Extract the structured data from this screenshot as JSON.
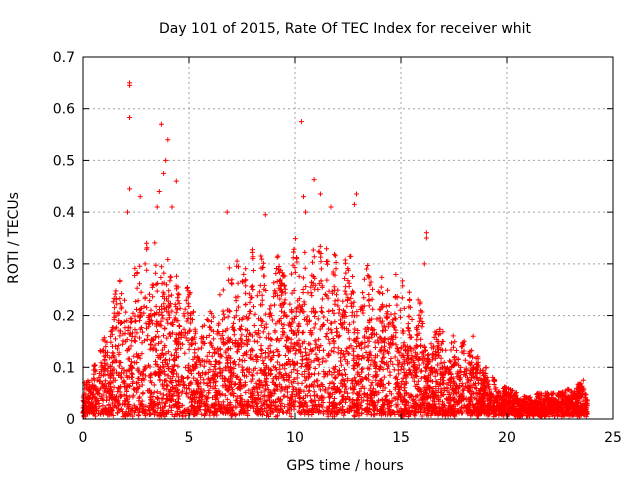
{
  "chart_data": {
    "type": "scatter",
    "title": "Day 101 of 2015, Rate Of TEC Index for receiver whit",
    "xlabel": "GPS time / hours",
    "ylabel": "ROTI / TECUs",
    "xlim": [
      0,
      25
    ],
    "ylim": [
      0,
      0.7
    ],
    "xticks": [
      0,
      5,
      10,
      15,
      20,
      25
    ],
    "yticks": [
      0,
      0.1,
      0.2,
      0.3,
      0.4,
      0.5,
      0.6,
      0.7
    ],
    "xtick_labels": [
      "0",
      "5",
      "10",
      "15",
      "20",
      "25"
    ],
    "ytick_labels": [
      "0",
      "0.1",
      "0.2",
      "0.3",
      "0.4",
      "0.5",
      "0.6",
      "0.7"
    ],
    "grid": true,
    "marker": "+",
    "color": "#ff0000",
    "series": [
      {
        "name": "ROTI",
        "envelope_hours": [
          0,
          0.5,
          1,
          1.5,
          2,
          2.5,
          3,
          3.5,
          4,
          4.5,
          5,
          5.5,
          6,
          6.5,
          7,
          7.5,
          8,
          8.5,
          9,
          9.5,
          10,
          10.5,
          11,
          11.5,
          12,
          12.5,
          13,
          13.5,
          14,
          14.5,
          15,
          15.5,
          16,
          16.5,
          17,
          17.5,
          18,
          18.5,
          19,
          19.5,
          20,
          20.5,
          21,
          21.5,
          22,
          22.5,
          23,
          23.5,
          23.8
        ],
        "envelope_max": [
          0.07,
          0.1,
          0.16,
          0.25,
          0.3,
          0.31,
          0.34,
          0.35,
          0.33,
          0.28,
          0.25,
          0.22,
          0.22,
          0.26,
          0.3,
          0.31,
          0.33,
          0.32,
          0.3,
          0.34,
          0.35,
          0.32,
          0.33,
          0.34,
          0.31,
          0.33,
          0.3,
          0.3,
          0.28,
          0.29,
          0.27,
          0.25,
          0.22,
          0.18,
          0.17,
          0.16,
          0.15,
          0.13,
          0.1,
          0.07,
          0.06,
          0.05,
          0.04,
          0.05,
          0.05,
          0.05,
          0.06,
          0.07,
          0.05
        ],
        "outliers": [
          {
            "x": 2.2,
            "y": 0.65
          },
          {
            "x": 2.2,
            "y": 0.645
          },
          {
            "x": 2.2,
            "y": 0.583
          },
          {
            "x": 3.7,
            "y": 0.57
          },
          {
            "x": 4.0,
            "y": 0.54
          },
          {
            "x": 3.9,
            "y": 0.5
          },
          {
            "x": 3.8,
            "y": 0.475
          },
          {
            "x": 4.4,
            "y": 0.46
          },
          {
            "x": 2.2,
            "y": 0.445
          },
          {
            "x": 3.6,
            "y": 0.44
          },
          {
            "x": 2.7,
            "y": 0.43
          },
          {
            "x": 4.2,
            "y": 0.41
          },
          {
            "x": 2.1,
            "y": 0.4
          },
          {
            "x": 3.5,
            "y": 0.41
          },
          {
            "x": 6.8,
            "y": 0.4
          },
          {
            "x": 8.6,
            "y": 0.395
          },
          {
            "x": 10.3,
            "y": 0.575
          },
          {
            "x": 10.9,
            "y": 0.463
          },
          {
            "x": 11.2,
            "y": 0.435
          },
          {
            "x": 10.4,
            "y": 0.43
          },
          {
            "x": 12.9,
            "y": 0.435
          },
          {
            "x": 12.8,
            "y": 0.415
          },
          {
            "x": 11.7,
            "y": 0.41
          },
          {
            "x": 10.5,
            "y": 0.4
          },
          {
            "x": 16.2,
            "y": 0.36
          },
          {
            "x": 16.2,
            "y": 0.35
          },
          {
            "x": 16.1,
            "y": 0.3
          },
          {
            "x": 18.4,
            "y": 0.16
          },
          {
            "x": 23.6,
            "y": 0.075
          }
        ]
      }
    ]
  }
}
